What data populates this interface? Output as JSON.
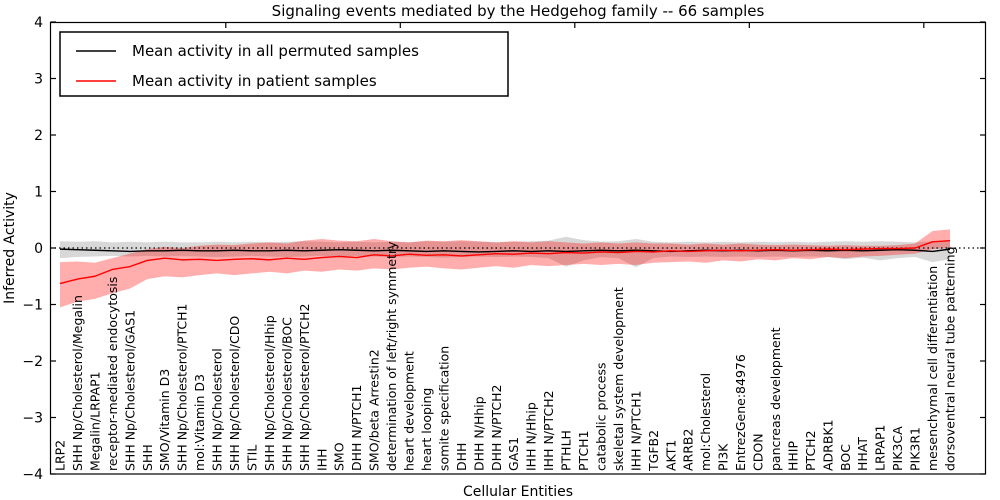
{
  "chart_data": {
    "type": "line",
    "title": "Signaling events mediated by the Hedgehog family -- 66 samples",
    "xlabel": "Cellular Entities",
    "ylabel": "Inferred Activity",
    "ylim": [
      -4,
      4
    ],
    "yticks": [
      -4,
      -3,
      -2,
      -1,
      0,
      1,
      2,
      3,
      4
    ],
    "grid": false,
    "zero_reference_line": {
      "value": 0,
      "style": "dotted",
      "color": "#000000"
    },
    "legend_position": "upper left",
    "categories": [
      "LRP2",
      "SHH Np/Cholesterol/Megalin",
      "Megalin/LRPAP1",
      "receptor-mediated endocytosis",
      "SHH Np/Cholesterol/GAS1",
      "SHH",
      "SMO/Vitamin D3",
      "SHH Np/Cholesterol/PTCH1",
      "mol:Vitamin D3",
      "SHH Np/Cholesterol",
      "SHH Np/Cholesterol/CDO",
      "STIL",
      "SHH Np/Cholesterol/Hhip",
      "SHH Np/Cholesterol/BOC",
      "SHH Np/Cholesterol/PTCH2",
      "IHH",
      "SMO",
      "DHH N/PTCH1",
      "SMO/beta Arrestin2",
      "determination of left/right symmetry",
      "heart development",
      "heart looping",
      "somite specification",
      "DHH",
      "DHH N/Hhip",
      "DHH N/PTCH2",
      "GAS1",
      "IHH N/Hhip",
      "IHH N/PTCH2",
      "PTHLH",
      "PTCH1",
      "catabolic process",
      "skeletal system development",
      "IHH N/PTCH1",
      "TGFB2",
      "AKT1",
      "ARRB2",
      "mol:Cholesterol",
      "PI3K",
      "EntrezGene:84976",
      "CDON",
      "pancreas development",
      "HHIP",
      "PTCH2",
      "ADRBK1",
      "BOC",
      "HHAT",
      "LRPAP1",
      "PIK3CA",
      "PIK3R1",
      "mesenchymal cell differentiation",
      "dorsoventral neural tube patterning"
    ],
    "series": [
      {
        "name": "Mean activity in all permuted samples",
        "color": "#000000",
        "band_color": "#999999",
        "band_opacity": 0.38,
        "values": [
          -0.02,
          -0.03,
          -0.04,
          -0.05,
          -0.06,
          -0.05,
          -0.05,
          -0.04,
          -0.05,
          -0.05,
          -0.04,
          -0.05,
          -0.05,
          -0.04,
          -0.05,
          -0.04,
          -0.03,
          -0.04,
          -0.05,
          -0.04,
          -0.05,
          -0.06,
          -0.05,
          -0.06,
          -0.07,
          -0.06,
          -0.05,
          -0.06,
          -0.05,
          -0.06,
          -0.05,
          -0.04,
          -0.05,
          -0.04,
          -0.05,
          -0.06,
          -0.05,
          -0.04,
          -0.05,
          -0.04,
          -0.05,
          -0.04,
          -0.05,
          -0.04,
          -0.05,
          -0.04,
          -0.05,
          -0.04,
          -0.03,
          -0.04,
          -0.06,
          -0.02
        ],
        "band_upper": [
          0.12,
          0.11,
          0.12,
          0.1,
          0.11,
          0.1,
          0.11,
          0.1,
          0.1,
          0.11,
          0.1,
          0.11,
          0.1,
          0.11,
          0.12,
          0.11,
          0.1,
          0.11,
          0.1,
          0.11,
          0.1,
          0.12,
          0.11,
          0.12,
          0.11,
          0.1,
          0.11,
          0.12,
          0.13,
          0.2,
          0.14,
          0.11,
          0.12,
          0.16,
          0.11,
          0.1,
          0.11,
          0.1,
          0.11,
          0.1,
          0.11,
          0.1,
          0.11,
          0.1,
          0.11,
          0.12,
          0.11,
          0.12,
          0.11,
          0.1,
          0.12,
          0.11
        ],
        "band_lower": [
          -0.18,
          -0.16,
          -0.15,
          -0.14,
          -0.15,
          -0.14,
          -0.15,
          -0.14,
          -0.15,
          -0.16,
          -0.15,
          -0.14,
          -0.15,
          -0.16,
          -0.15,
          -0.14,
          -0.15,
          -0.14,
          -0.15,
          -0.16,
          -0.15,
          -0.16,
          -0.17,
          -0.16,
          -0.15,
          -0.16,
          -0.15,
          -0.16,
          -0.18,
          -0.33,
          -0.22,
          -0.16,
          -0.18,
          -0.34,
          -0.18,
          -0.15,
          -0.16,
          -0.15,
          -0.16,
          -0.15,
          -0.16,
          -0.15,
          -0.16,
          -0.15,
          -0.16,
          -0.2,
          -0.17,
          -0.22,
          -0.18,
          -0.16,
          -0.25,
          -0.2
        ]
      },
      {
        "name": "Mean activity in patient samples",
        "color": "#ff0000",
        "band_color": "#ff0000",
        "band_opacity": 0.32,
        "values": [
          -0.63,
          -0.55,
          -0.5,
          -0.38,
          -0.33,
          -0.22,
          -0.18,
          -0.21,
          -0.2,
          -0.22,
          -0.2,
          -0.19,
          -0.21,
          -0.18,
          -0.2,
          -0.17,
          -0.15,
          -0.17,
          -0.12,
          -0.14,
          -0.11,
          -0.13,
          -0.12,
          -0.14,
          -0.12,
          -0.1,
          -0.11,
          -0.09,
          -0.1,
          -0.08,
          -0.09,
          -0.07,
          -0.08,
          -0.06,
          -0.07,
          -0.05,
          -0.06,
          -0.05,
          -0.04,
          -0.05,
          -0.04,
          -0.03,
          -0.04,
          -0.03,
          -0.02,
          -0.03,
          -0.02,
          -0.01,
          -0.01,
          0.0,
          0.11,
          0.13
        ],
        "band_upper": [
          -0.25,
          -0.24,
          -0.26,
          -0.18,
          -0.1,
          -0.02,
          0.02,
          0.0,
          0.04,
          0.06,
          0.05,
          0.08,
          0.1,
          0.08,
          0.13,
          0.16,
          0.13,
          0.12,
          0.16,
          0.12,
          0.1,
          0.13,
          0.12,
          0.14,
          0.12,
          0.1,
          0.12,
          0.1,
          0.12,
          0.1,
          0.08,
          0.1,
          0.08,
          0.1,
          0.08,
          0.08,
          0.06,
          0.08,
          0.06,
          0.08,
          0.06,
          0.05,
          0.06,
          0.05,
          0.04,
          0.05,
          0.04,
          0.04,
          0.05,
          0.08,
          0.3,
          0.33
        ],
        "band_lower": [
          -1.05,
          -0.95,
          -0.9,
          -0.8,
          -0.72,
          -0.55,
          -0.5,
          -0.52,
          -0.48,
          -0.45,
          -0.48,
          -0.45,
          -0.42,
          -0.45,
          -0.4,
          -0.42,
          -0.38,
          -0.4,
          -0.36,
          -0.38,
          -0.35,
          -0.33,
          -0.36,
          -0.38,
          -0.35,
          -0.32,
          -0.35,
          -0.3,
          -0.32,
          -0.3,
          -0.28,
          -0.3,
          -0.28,
          -0.3,
          -0.26,
          -0.25,
          -0.24,
          -0.26,
          -0.22,
          -0.24,
          -0.2,
          -0.22,
          -0.18,
          -0.2,
          -0.16,
          -0.18,
          -0.15,
          -0.14,
          -0.12,
          -0.1,
          -0.02,
          0.0
        ]
      }
    ],
    "top_axis_tick_units": [
      10,
      20,
      30,
      40,
      50
    ]
  }
}
